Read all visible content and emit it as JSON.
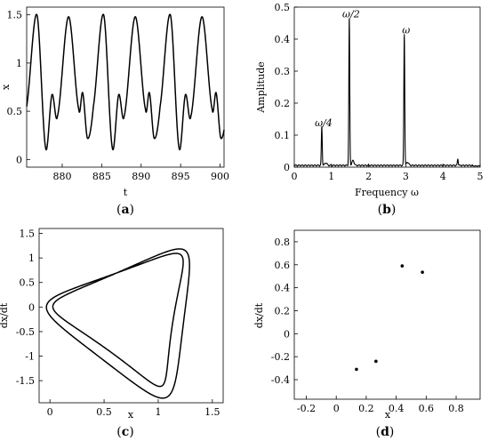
{
  "figure": {
    "panel_labels": [
      {
        "open": "(",
        "letter": "a",
        "close": ")"
      },
      {
        "open": "(",
        "letter": "b",
        "close": ")"
      },
      {
        "open": "(",
        "letter": "c",
        "close": ")"
      },
      {
        "open": "(",
        "letter": "d",
        "close": ")"
      }
    ]
  },
  "chart_data": [
    {
      "id": "a",
      "type": "line",
      "title": "",
      "xlabel": "t",
      "ylabel": "x",
      "xlim": [
        875.5,
        900.5
      ],
      "ylim": [
        -0.08,
        1.58
      ],
      "xticks": [
        880,
        885,
        890,
        895,
        900
      ],
      "xtick_labels": [
        "880",
        "885",
        "890",
        "895",
        "900"
      ],
      "yticks": [
        0,
        0.5,
        1,
        1.5
      ],
      "ytick_labels": [
        "0",
        "0.5",
        "1",
        "1.5"
      ],
      "signal": {
        "t_start": 875.5,
        "t_end": 900.5,
        "period": 8.45,
        "keypoints": [
          {
            "t": 875.5,
            "x": 0.55
          },
          {
            "t": 876.8,
            "x": 1.5
          },
          {
            "t": 877.9,
            "x": 0.12
          },
          {
            "t": 878.7,
            "x": 0.67
          },
          {
            "t": 879.4,
            "x": 0.45
          },
          {
            "t": 880.8,
            "x": 1.48
          },
          {
            "t": 882.1,
            "x": 0.52
          },
          {
            "t": 882.6,
            "x": 0.69
          },
          {
            "t": 883.2,
            "x": 0.22
          }
        ]
      },
      "grid": false
    },
    {
      "id": "b",
      "type": "line",
      "title": "",
      "xlabel": "Frequency ω",
      "ylabel": "Amplitude",
      "xlim": [
        0,
        5
      ],
      "ylim": [
        0,
        0.5
      ],
      "xticks": [
        0,
        1,
        2,
        3,
        4,
        5
      ],
      "xtick_labels": [
        "0",
        "1",
        "2",
        "3",
        "4",
        "5"
      ],
      "yticks": [
        0,
        0.1,
        0.2,
        0.3,
        0.4,
        0.5
      ],
      "ytick_labels": [
        "0",
        "0.1",
        "0.2",
        "0.3",
        "0.4",
        "0.5"
      ],
      "peaks": [
        {
          "frequency": 0.74,
          "amplitude": 0.12,
          "label": "ω/4"
        },
        {
          "frequency": 1.48,
          "amplitude": 0.46,
          "label": "ω/2"
        },
        {
          "frequency": 2.96,
          "amplitude": 0.41,
          "label": "ω"
        },
        {
          "frequency": 4.4,
          "amplitude": 0.02,
          "label": ""
        }
      ],
      "grid": false
    },
    {
      "id": "c",
      "type": "line",
      "title": "",
      "xlabel": "x",
      "ylabel": "dx/dt",
      "xlim": [
        -0.1,
        1.6
      ],
      "ylim": [
        -1.95,
        1.6
      ],
      "xticks": [
        0,
        0.5,
        1,
        1.5
      ],
      "xtick_labels": [
        "0",
        "0.5",
        "1",
        "1.5"
      ],
      "yticks": [
        1.5,
        1,
        0.5,
        0,
        -0.5,
        -1,
        -1.5
      ],
      "ytick_labels": [
        "1.5",
        "1",
        "0.5",
        "0",
        "-0.5",
        "-1",
        "-1.5"
      ],
      "orbit": "phase portrait of the time series in panel (a)",
      "grid": false
    },
    {
      "id": "d",
      "type": "scatter",
      "title": "",
      "xlabel": "x",
      "ylabel": "dx/dt",
      "xlim": [
        -0.28,
        0.96
      ],
      "ylim": [
        -0.57,
        0.9
      ],
      "xticks": [
        -0.2,
        0,
        0.2,
        0.4,
        0.6,
        0.8
      ],
      "xtick_labels": [
        "-0.2",
        "0",
        "0.2",
        "0.4",
        "0.6",
        "0.8"
      ],
      "yticks": [
        0.8,
        0.6,
        0.4,
        0.2,
        0,
        -0.2,
        -0.4
      ],
      "ytick_labels": [
        "0.8",
        "0.6",
        "0.4",
        "0.2",
        "0",
        "-0.2",
        "-0.4"
      ],
      "points": [
        {
          "x": 0.44,
          "y": 0.59
        },
        {
          "x": 0.575,
          "y": 0.535
        },
        {
          "x": 0.135,
          "y": -0.31
        },
        {
          "x": 0.265,
          "y": -0.24
        }
      ],
      "grid": false
    }
  ]
}
